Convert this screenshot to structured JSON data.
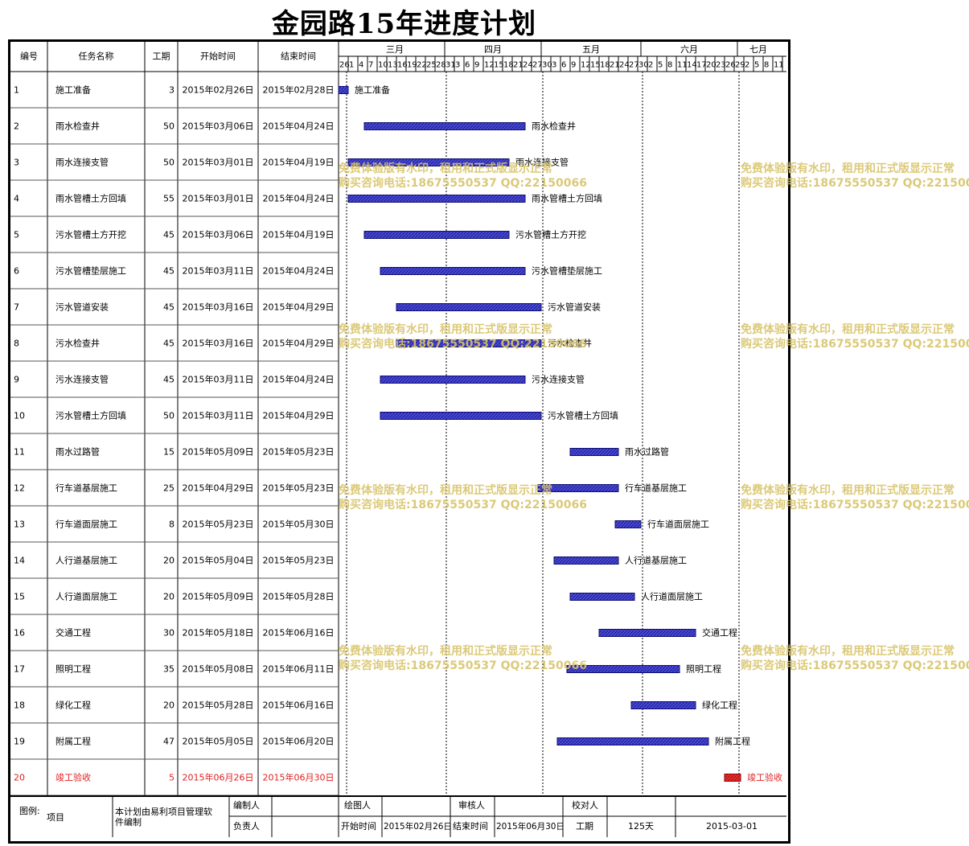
{
  "title": "金园路15年进度计划",
  "headers": {
    "id": "编号",
    "name": "任务名称",
    "duration": "工期",
    "start": "开始时间",
    "end": "结束时间"
  },
  "months": [
    "三月",
    "四月",
    "五月",
    "六月",
    "七月"
  ],
  "day_ticks": [
    "26",
    "1",
    "4",
    "7",
    "10",
    "13",
    "16",
    "19",
    "22",
    "25",
    "28",
    "31",
    "3",
    "6",
    "9",
    "12",
    "15",
    "18",
    "21",
    "24",
    "27",
    "30",
    "3",
    "6",
    "9",
    "12",
    "15",
    "18",
    "21",
    "24",
    "27",
    "30",
    "2",
    "5",
    "8",
    "11",
    "14",
    "17",
    "20",
    "23",
    "26",
    "29",
    "2",
    "5",
    "8",
    "11"
  ],
  "chart_data": {
    "type": "gantt",
    "x_axis": {
      "range": [
        "2015-02-26",
        "2015-07-12"
      ],
      "unit": "day",
      "tick_interval_days": 3
    },
    "colors": {
      "normal": "#4040c8",
      "critical": "#e02020"
    },
    "tasks": [
      {
        "id": "1",
        "name": "施工准备",
        "duration": "3",
        "start": "2015年02月26日",
        "end": "2015年02月28日",
        "start_iso": "2015-02-26",
        "end_iso": "2015-02-28",
        "critical": false
      },
      {
        "id": "2",
        "name": "雨水检查井",
        "duration": "50",
        "start": "2015年03月06日",
        "end": "2015年04月24日",
        "start_iso": "2015-03-06",
        "end_iso": "2015-04-24",
        "critical": false
      },
      {
        "id": "3",
        "name": "雨水连接支管",
        "duration": "50",
        "start": "2015年03月01日",
        "end": "2015年04月19日",
        "start_iso": "2015-03-01",
        "end_iso": "2015-04-19",
        "critical": false
      },
      {
        "id": "4",
        "name": "雨水管槽土方回填",
        "duration": "55",
        "start": "2015年03月01日",
        "end": "2015年04月24日",
        "start_iso": "2015-03-01",
        "end_iso": "2015-04-24",
        "critical": false
      },
      {
        "id": "5",
        "name": "污水管槽土方开挖",
        "duration": "45",
        "start": "2015年03月06日",
        "end": "2015年04月19日",
        "start_iso": "2015-03-06",
        "end_iso": "2015-04-19",
        "critical": false
      },
      {
        "id": "6",
        "name": "污水管槽垫层施工",
        "duration": "45",
        "start": "2015年03月11日",
        "end": "2015年04月24日",
        "start_iso": "2015-03-11",
        "end_iso": "2015-04-24",
        "critical": false
      },
      {
        "id": "7",
        "name": "污水管道安装",
        "duration": "45",
        "start": "2015年03月16日",
        "end": "2015年04月29日",
        "start_iso": "2015-03-16",
        "end_iso": "2015-04-29",
        "critical": false
      },
      {
        "id": "8",
        "name": "污水检查井",
        "duration": "45",
        "start": "2015年03月16日",
        "end": "2015年04月29日",
        "start_iso": "2015-03-16",
        "end_iso": "2015-04-29",
        "critical": false
      },
      {
        "id": "9",
        "name": "污水连接支管",
        "duration": "45",
        "start": "2015年03月11日",
        "end": "2015年04月24日",
        "start_iso": "2015-03-11",
        "end_iso": "2015-04-24",
        "critical": false
      },
      {
        "id": "10",
        "name": "污水管槽土方回填",
        "duration": "50",
        "start": "2015年03月11日",
        "end": "2015年04月29日",
        "start_iso": "2015-03-11",
        "end_iso": "2015-04-29",
        "critical": false
      },
      {
        "id": "11",
        "name": "雨水过路管",
        "duration": "15",
        "start": "2015年05月09日",
        "end": "2015年05月23日",
        "start_iso": "2015-05-09",
        "end_iso": "2015-05-23",
        "critical": false
      },
      {
        "id": "12",
        "name": "行车道基层施工",
        "duration": "25",
        "start": "2015年04月29日",
        "end": "2015年05月23日",
        "start_iso": "2015-04-29",
        "end_iso": "2015-05-23",
        "critical": false
      },
      {
        "id": "13",
        "name": "行车道面层施工",
        "duration": "8",
        "start": "2015年05月23日",
        "end": "2015年05月30日",
        "start_iso": "2015-05-23",
        "end_iso": "2015-05-30",
        "critical": false
      },
      {
        "id": "14",
        "name": "人行道基层施工",
        "duration": "20",
        "start": "2015年05月04日",
        "end": "2015年05月23日",
        "start_iso": "2015-05-04",
        "end_iso": "2015-05-23",
        "critical": false
      },
      {
        "id": "15",
        "name": "人行道面层施工",
        "duration": "20",
        "start": "2015年05月09日",
        "end": "2015年05月28日",
        "start_iso": "2015-05-09",
        "end_iso": "2015-05-28",
        "critical": false
      },
      {
        "id": "16",
        "name": "交通工程",
        "duration": "30",
        "start": "2015年05月18日",
        "end": "2015年06月16日",
        "start_iso": "2015-05-18",
        "end_iso": "2015-06-16",
        "critical": false
      },
      {
        "id": "17",
        "name": "照明工程",
        "duration": "35",
        "start": "2015年05月08日",
        "end": "2015年06月11日",
        "start_iso": "2015-05-08",
        "end_iso": "2015-06-11",
        "critical": false
      },
      {
        "id": "18",
        "name": "绿化工程",
        "duration": "20",
        "start": "2015年05月28日",
        "end": "2015年06月16日",
        "start_iso": "2015-05-28",
        "end_iso": "2015-06-16",
        "critical": false
      },
      {
        "id": "19",
        "name": "附属工程",
        "duration": "47",
        "start": "2015年05月05日",
        "end": "2015年06月20日",
        "start_iso": "2015-05-05",
        "end_iso": "2015-06-20",
        "critical": false
      },
      {
        "id": "20",
        "name": "竣工验收",
        "duration": "5",
        "start": "2015年06月26日",
        "end": "2015年06月30日",
        "start_iso": "2015-06-26",
        "end_iso": "2015-06-30",
        "critical": true
      }
    ]
  },
  "footer": {
    "legend_label": "图例:",
    "legend_item": "项目",
    "note_line1": "本计划由易利项目管理软",
    "note_line2": "件编制",
    "compiler_label": "编制人",
    "drawer_label": "绘图人",
    "reviewer_label": "审核人",
    "checker_label": "校对人",
    "owner_label": "负责人",
    "start_label": "开始时间",
    "start_value": "2015年02月26日",
    "end_label": "结束时间",
    "end_value": "2015年06月30日",
    "duration_label": "工期",
    "duration_value": "125天",
    "date_value": "2015-03-01"
  },
  "watermark": {
    "line1": "免费体验版有水印，租用和正式版显示正常",
    "line2": "购买咨询电话:18675550537 QQ:22150066"
  }
}
